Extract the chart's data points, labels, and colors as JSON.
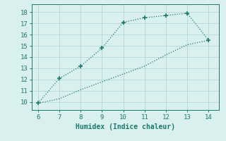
{
  "xlabel": "Humidex (Indice chaleur)",
  "xlim": [
    5.7,
    14.5
  ],
  "ylim": [
    9.3,
    18.7
  ],
  "xticks": [
    6,
    7,
    8,
    9,
    10,
    11,
    12,
    13,
    14
  ],
  "yticks": [
    10,
    11,
    12,
    13,
    14,
    15,
    16,
    17,
    18
  ],
  "upper_line_x": [
    6,
    7,
    8,
    9,
    10,
    11,
    12,
    13,
    14
  ],
  "upper_line_y": [
    9.9,
    12.1,
    13.2,
    14.8,
    17.1,
    17.5,
    17.7,
    17.9,
    15.5
  ],
  "lower_line_x": [
    6,
    7,
    8,
    9,
    10,
    11,
    12,
    13,
    14
  ],
  "lower_line_y": [
    9.9,
    10.3,
    11.1,
    11.8,
    12.5,
    13.2,
    14.2,
    15.1,
    15.5
  ],
  "line_color": "#1a7a6e",
  "bg_color": "#d9f0ee",
  "grid_color": "#b0d8d4",
  "marker": "+",
  "marker_size": 5,
  "line_width": 0.9,
  "font_family": "monospace",
  "tick_fontsize": 6.5,
  "xlabel_fontsize": 7
}
